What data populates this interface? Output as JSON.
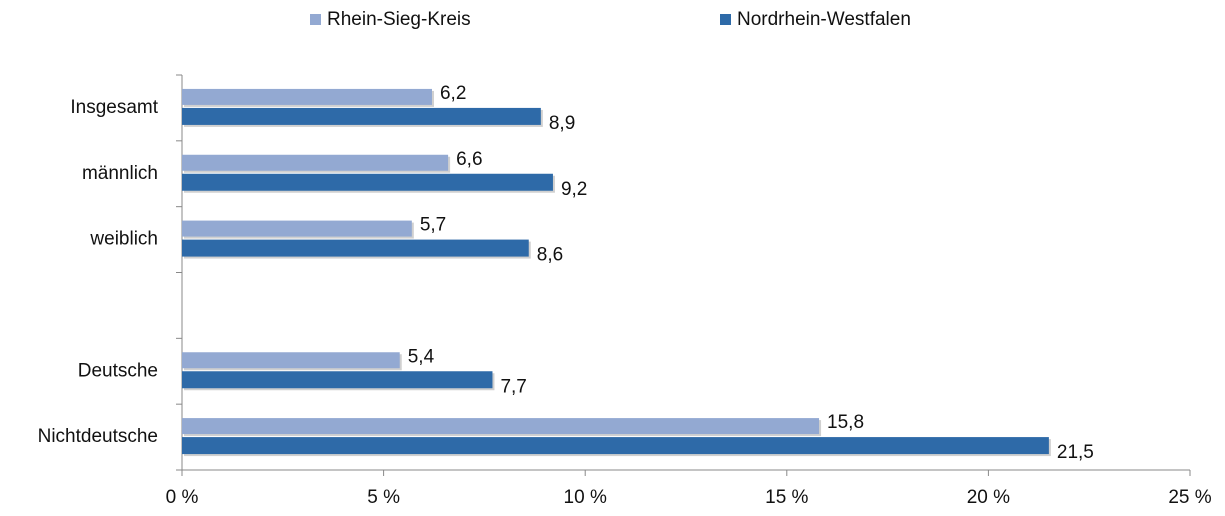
{
  "chart_data": {
    "type": "hbar",
    "categories": [
      "Insgesamt",
      "männlich",
      "weiblich",
      null,
      "Deutsche",
      "Nichtdeutsche"
    ],
    "series": [
      {
        "name": "Rhein-Sieg-Kreis",
        "color": "#93a9d2",
        "values": [
          6.2,
          6.6,
          5.7,
          null,
          5.4,
          15.8
        ],
        "value_labels": [
          "6,2",
          "6,6",
          "5,7",
          null,
          "5,4",
          "15,8"
        ]
      },
      {
        "name": "Nordrhein-Westfalen",
        "color": "#2e6aa8",
        "values": [
          8.9,
          9.2,
          8.6,
          null,
          7.7,
          21.5
        ],
        "value_labels": [
          "8,9",
          "9,2",
          "8,6",
          null,
          "7,7",
          "21,5"
        ]
      }
    ],
    "xlim": [
      0,
      25
    ],
    "xticks": [
      {
        "value": 0,
        "label": "0 %"
      },
      {
        "value": 5,
        "label": "5 %"
      },
      {
        "value": 10,
        "label": "10 %"
      },
      {
        "value": 15,
        "label": "15 %"
      },
      {
        "value": 20,
        "label": "20 %"
      },
      {
        "value": 25,
        "label": "25 %"
      }
    ],
    "legend": "top"
  }
}
